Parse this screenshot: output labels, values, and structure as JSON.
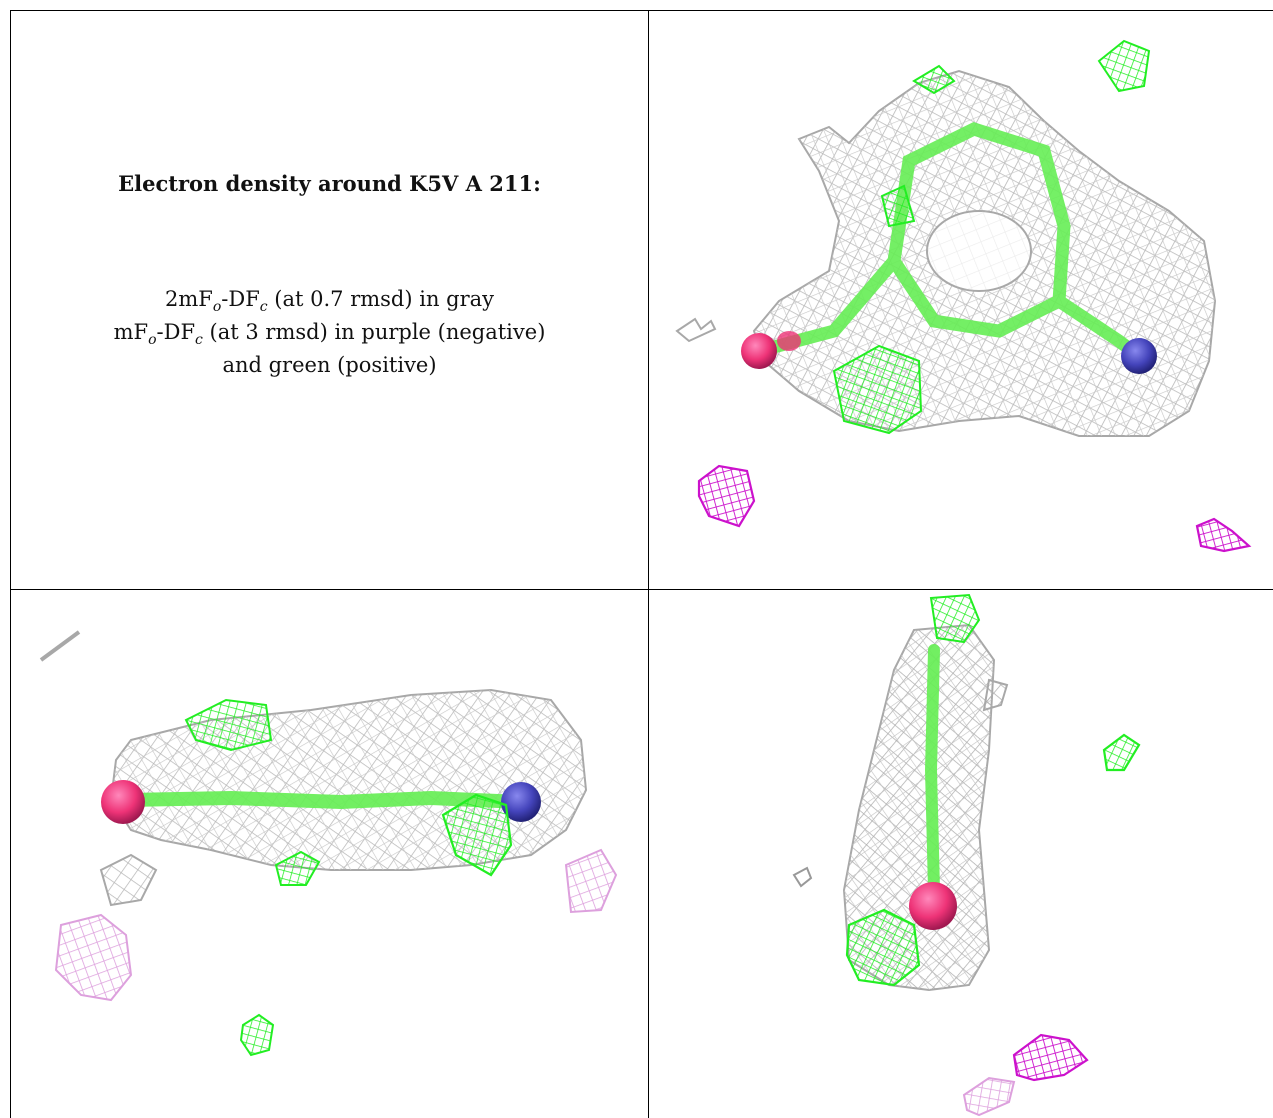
{
  "legend": {
    "title": "Electron density around K5V A 211:",
    "line1": {
      "main": "2mF",
      "sub1": "o",
      "mid": "-DF",
      "sub2": "c",
      "tail": " (at 0.7 rmsd) in gray"
    },
    "line2": {
      "main": "mF",
      "sub1": "o",
      "mid": "-DF",
      "sub2": "c",
      "tail": " (at 3 rmsd) in purple (negative)"
    },
    "line3": "and green (positive)"
  },
  "colors": {
    "gray_mesh": "#bdbdbd",
    "green_mesh": "#22ee22",
    "purple_mesh": "#cc11cc",
    "light_purple_mesh": "#dda0dd",
    "bond_green": "#66ee55",
    "oxygen": "#ee3377",
    "nitrogen": "#4444bb"
  }
}
